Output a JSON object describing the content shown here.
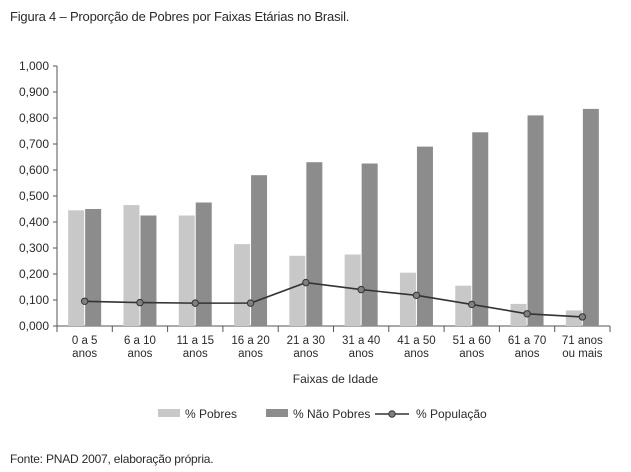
{
  "figure": {
    "title": "Figura 4 – Proporção de Pobres por Faixas Etárias no Brasil.",
    "source": "Fonte: PNAD 2007, elaboração própria."
  },
  "chart_data": {
    "type": "bar",
    "title": "",
    "xlabel": "Faixas de Idade",
    "ylabel": "",
    "ylim": [
      0,
      1
    ],
    "yticks": [
      "0,000",
      "0,100",
      "0,200",
      "0,300",
      "0,400",
      "0,500",
      "0,600",
      "0,700",
      "0,800",
      "0,900",
      "1,000"
    ],
    "categories": [
      [
        "0 a 5",
        "anos"
      ],
      [
        "6 a 10",
        "anos"
      ],
      [
        "11 a 15",
        "anos"
      ],
      [
        "16 a 20",
        "anos"
      ],
      [
        "21 a 30",
        "anos"
      ],
      [
        "31 a 40",
        "anos"
      ],
      [
        "41 a 50",
        "anos"
      ],
      [
        "51 a 60",
        "anos"
      ],
      [
        "61 a 70",
        "anos"
      ],
      [
        "71 anos",
        "ou mais"
      ]
    ],
    "series": [
      {
        "name": "% Pobres",
        "kind": "bar",
        "color": "#c8c8c8",
        "values": [
          0.445,
          0.465,
          0.425,
          0.315,
          0.27,
          0.275,
          0.205,
          0.155,
          0.085,
          0.06
        ]
      },
      {
        "name": "% Não Pobres",
        "kind": "bar",
        "color": "#8c8c8c",
        "values": [
          0.45,
          0.425,
          0.475,
          0.58,
          0.63,
          0.625,
          0.69,
          0.745,
          0.81,
          0.835
        ]
      },
      {
        "name": "% População",
        "kind": "line",
        "color": "#333333",
        "marker_color": "#808080",
        "values": [
          0.095,
          0.09,
          0.088,
          0.088,
          0.167,
          0.14,
          0.118,
          0.083,
          0.047,
          0.035
        ]
      }
    ],
    "legend_position": "bottom",
    "grid": false
  }
}
